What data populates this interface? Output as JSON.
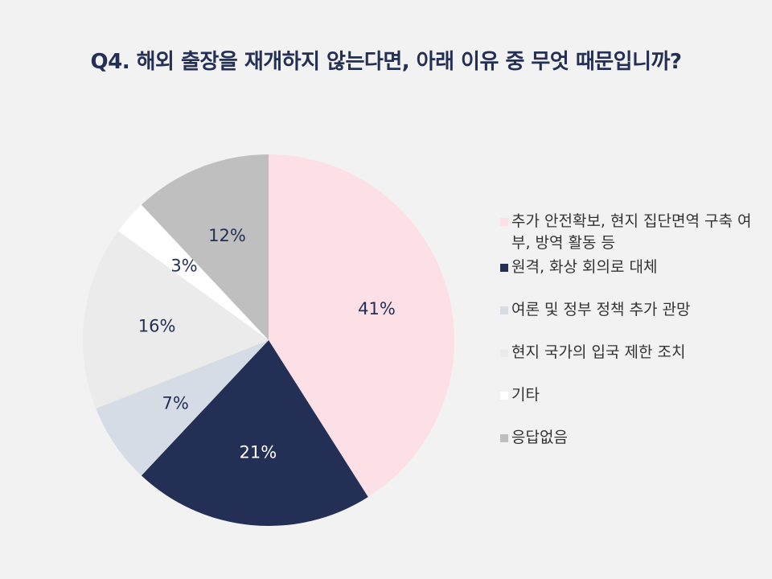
{
  "chart_data": {
    "type": "pie",
    "title": "Q4. 해외 출장을 재개하지 않는다면, 아래 이유 중 무엇 때문입니까?",
    "slices": [
      {
        "label": "추가 안전확보, 현지 집단면역 구축 여부, 방역 활동 등",
        "value": 41,
        "value_label": "41%",
        "color": "#fde0e6",
        "label_color": "#232f55"
      },
      {
        "label": "원격, 화상 회의로 대체",
        "value": 21,
        "value_label": "21%",
        "color": "#232f55",
        "label_color": "#ffffff"
      },
      {
        "label": "여론 및 정부 정책 추가 관망",
        "value": 7,
        "value_label": "7%",
        "color": "#d6dce6",
        "label_color": "#232f55"
      },
      {
        "label": "현지 국가의 입국 제한 조치",
        "value": 16,
        "value_label": "16%",
        "color": "#ebebeb",
        "label_color": "#232f55"
      },
      {
        "label": "기타",
        "value": 3,
        "value_label": "3%",
        "color": "#ffffff",
        "label_color": "#232f55"
      },
      {
        "label": "응답없음",
        "value": 12,
        "value_label": "12%",
        "color": "#bfbfbf",
        "label_color": "#232f55"
      }
    ],
    "legend_position": "right"
  }
}
